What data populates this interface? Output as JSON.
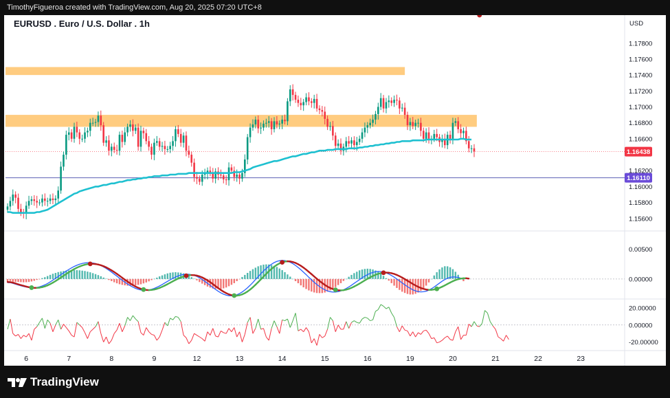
{
  "header": {
    "attribution": "TimothyFigueroa created with TradingView.com, Aug 20, 2025 07:20 UTC+8"
  },
  "footer": {
    "brand": "TradingView"
  },
  "colors": {
    "up": "#089981",
    "down": "#f23645",
    "ema": "#1ec0d0",
    "zone": "#ffcc80",
    "support_line": "#5b5fb5",
    "price_badge": "#f23645",
    "support_badge": "#6a4bd8",
    "macd_fast": "#2962ff",
    "macd_signal_up": "#4caf50",
    "macd_signal_down": "#b71c1c",
    "hist_up": "#26a69a",
    "hist_down": "#ef5350",
    "osc_up": "#4caf50",
    "osc_down": "#f23645"
  },
  "chart_data": [
    {
      "type": "candlestick",
      "title": "EURUSD . Euro / U.S. Dollar . 1h",
      "currency": "USD",
      "y_ticks": [
        "1.17800",
        "1.17600",
        "1.17400",
        "1.17200",
        "1.17000",
        "1.16800",
        "1.16600",
        "1.16200",
        "1.16000",
        "1.15800",
        "1.15600"
      ],
      "ylim": [
        1.1546,
        1.181
      ],
      "x_ticks": [
        "6",
        "7",
        "8",
        "9",
        "12",
        "13",
        "14",
        "15",
        "16",
        "19",
        "20",
        "21",
        "22",
        "23"
      ],
      "x_tick_index": [
        7,
        23,
        39,
        55,
        71,
        87,
        103,
        119,
        135,
        151,
        167,
        183,
        199,
        215
      ],
      "last_price": {
        "value": 1.16438,
        "label": "1.16438"
      },
      "support_line": {
        "value": 1.1611,
        "label": "1.16110"
      },
      "resistance_zones": [
        {
          "from": 1.174,
          "to": 1.175,
          "start": 0,
          "end": 149
        },
        {
          "from": 1.1675,
          "to": 1.169,
          "start": 0,
          "end": 176
        }
      ],
      "close": [
        1.1575,
        1.1582,
        1.159,
        1.1586,
        1.1572,
        1.1568,
        1.1566,
        1.1576,
        1.1582,
        1.1584,
        1.1582,
        1.158,
        1.158,
        1.1585,
        1.1582,
        1.1582,
        1.1585,
        1.1583,
        1.1585,
        1.1595,
        1.1625,
        1.164,
        1.1665,
        1.1668,
        1.166,
        1.1675,
        1.1668,
        1.166,
        1.166,
        1.1668,
        1.167,
        1.168,
        1.168,
        1.1681,
        1.1689,
        1.1677,
        1.1655,
        1.1658,
        1.1645,
        1.165,
        1.1646,
        1.1645,
        1.1665,
        1.1656,
        1.1668,
        1.1675,
        1.1678,
        1.167,
        1.1674,
        1.165,
        1.167,
        1.1667,
        1.1657,
        1.165,
        1.164,
        1.1655,
        1.1657,
        1.165,
        1.1651,
        1.1647,
        1.1647,
        1.1651,
        1.1657,
        1.1672,
        1.1666,
        1.1655,
        1.1664,
        1.1645,
        1.164,
        1.163,
        1.1612,
        1.161,
        1.1606,
        1.1615,
        1.1616,
        1.162,
        1.1617,
        1.161,
        1.1619,
        1.1615,
        1.1614,
        1.1609,
        1.1608,
        1.1624,
        1.162,
        1.1612,
        1.1615,
        1.161,
        1.1617,
        1.1634,
        1.1662,
        1.1674,
        1.1678,
        1.1684,
        1.1673,
        1.1674,
        1.1679,
        1.168,
        1.1682,
        1.1672,
        1.1682,
        1.1678,
        1.1679,
        1.1684,
        1.1682,
        1.1707,
        1.1722,
        1.1715,
        1.1709,
        1.1705,
        1.1702,
        1.1706,
        1.1712,
        1.1707,
        1.1705,
        1.171,
        1.1698,
        1.1696,
        1.1694,
        1.1685,
        1.1675,
        1.1676,
        1.1664,
        1.1651,
        1.1654,
        1.1645,
        1.165,
        1.1657,
        1.1654,
        1.1658,
        1.1652,
        1.1656,
        1.166,
        1.1668,
        1.1674,
        1.1677,
        1.168,
        1.1684,
        1.1691,
        1.17,
        1.1711,
        1.1698,
        1.1706,
        1.1708,
        1.1705,
        1.1709,
        1.1708,
        1.1698,
        1.1699,
        1.169,
        1.1677,
        1.1681,
        1.1676,
        1.168,
        1.168,
        1.167,
        1.166,
        1.1668,
        1.166,
        1.166,
        1.1666,
        1.1662,
        1.1656,
        1.166,
        1.1652,
        1.1665,
        1.166,
        1.168,
        1.1682,
        1.1672,
        1.1667,
        1.167,
        1.1657,
        1.1648,
        1.1648,
        1.1644
      ],
      "ema": [
        1.1568,
        1.1568,
        1.1567,
        1.1567,
        1.1567,
        1.1567,
        1.1567,
        1.1567,
        1.1567,
        1.1567,
        1.1567,
        1.1568,
        1.1568,
        1.1569,
        1.157,
        1.1571,
        1.1573,
        1.1575,
        1.1577,
        1.1579,
        1.1581,
        1.1583,
        1.1585,
        1.1587,
        1.1589,
        1.1591,
        1.1592,
        1.1594,
        1.1595,
        1.1596,
        1.1597,
        1.1598,
        1.1599,
        1.16,
        1.16,
        1.1601,
        1.1602,
        1.1602,
        1.1603,
        1.1604,
        1.1604,
        1.1605,
        1.1606,
        1.1606,
        1.1607,
        1.1608,
        1.1608,
        1.1609,
        1.1609,
        1.161,
        1.161,
        1.1611,
        1.1611,
        1.1612,
        1.1612,
        1.1613,
        1.1613,
        1.1613,
        1.1614,
        1.1614,
        1.1614,
        1.1615,
        1.1615,
        1.1615,
        1.1616,
        1.1616,
        1.1616,
        1.1616,
        1.1617,
        1.1617,
        1.1617,
        1.1617,
        1.1617,
        1.1617,
        1.1617,
        1.1617,
        1.1617,
        1.1617,
        1.1617,
        1.1617,
        1.1617,
        1.1617,
        1.1617,
        1.1617,
        1.1617,
        1.1618,
        1.1618,
        1.1618,
        1.1619,
        1.162,
        1.1621,
        1.1622,
        1.1624,
        1.1625,
        1.1626,
        1.1627,
        1.1628,
        1.1629,
        1.163,
        1.1631,
        1.1632,
        1.1632,
        1.1633,
        1.1634,
        1.1635,
        1.1636,
        1.1637,
        1.1638,
        1.1638,
        1.1639,
        1.164,
        1.1641,
        1.1641,
        1.1642,
        1.1643,
        1.1643,
        1.1644,
        1.1645,
        1.1645,
        1.1645,
        1.1646,
        1.1646,
        1.1646,
        1.1647,
        1.1647,
        1.1647,
        1.1647,
        1.1647,
        1.1648,
        1.1648,
        1.1648,
        1.1648,
        1.1649,
        1.1649,
        1.165,
        1.165,
        1.1651,
        1.1651,
        1.1652,
        1.1652,
        1.1653,
        1.1653,
        1.1654,
        1.1654,
        1.1655,
        1.1655,
        1.1656,
        1.1656,
        1.1657,
        1.1657,
        1.1657,
        1.1657,
        1.1658,
        1.1658,
        1.1658,
        1.1658,
        1.1658,
        1.1659,
        1.1659,
        1.1659,
        1.1659,
        1.1659,
        1.1659,
        1.1659,
        1.1659,
        1.1659,
        1.1659,
        1.1659,
        1.1659,
        1.1659,
        1.166,
        1.166,
        1.1659,
        1.1659,
        1.1659
      ]
    },
    {
      "type": "line",
      "series_type": "macd",
      "y_ticks": [
        "0.00500",
        "0.00000"
      ],
      "ylim": [
        -0.003,
        0.0078
      ],
      "fast": [
        -0.00061,
        -0.0006,
        -0.00073,
        -0.00086,
        -0.001,
        -0.00113,
        -0.00125,
        -0.00135,
        -0.00143,
        -0.00146,
        -0.00145,
        -0.0014,
        -0.00131,
        -0.00116,
        -0.00098,
        -0.00075,
        -0.00048,
        -0.00019,
        0.00011,
        0.00042,
        0.00073,
        0.00103,
        0.00133,
        0.0016,
        0.00186,
        0.0021,
        0.0023,
        0.00247,
        0.0026,
        0.00269,
        0.00273,
        0.00273,
        0.00268,
        0.00258,
        0.00244,
        0.00225,
        0.00202,
        0.00176,
        0.00147,
        0.00116,
        0.00082,
        0.00048,
        0.00013,
        -0.00021,
        -0.00053,
        -0.00084,
        -0.00112,
        -0.00136,
        -0.00156,
        -0.00172,
        -0.00183,
        -0.00188,
        -0.00188,
        -0.00183,
        -0.00172,
        -0.00157,
        -0.00138,
        -0.00116,
        -0.00092,
        -0.00066,
        -0.00039,
        -0.00013,
        0.00011,
        0.00033,
        0.00051,
        0.00066,
        0.00076,
        0.0008,
        0.00079,
        0.00072,
        0.0006,
        0.00042,
        0.00019,
        -8e-05,
        -0.00039,
        -0.00072,
        -0.00106,
        -0.00141,
        -0.00174,
        -0.00205,
        -0.00232,
        -0.00254,
        -0.0027,
        -0.00279,
        -0.00282,
        -0.00277,
        -0.00264,
        -0.00244,
        -0.00217,
        -0.00184,
        -0.00146,
        -0.00103,
        -0.00057,
        -9e-05,
        0.0004,
        0.00088,
        0.00134,
        0.00176,
        0.00215,
        0.00247,
        0.00274,
        0.00294,
        0.00306,
        0.00311,
        0.00308,
        0.00297,
        0.0028,
        0.00256,
        0.00227,
        0.00193,
        0.00155,
        0.00114,
        0.00072,
        0.00029,
        -0.00013,
        -0.00054,
        -0.00092,
        -0.00126,
        -0.00156,
        -0.00181,
        -0.002,
        -0.00212,
        -0.00218,
        -0.00218,
        -0.00211,
        -0.00199,
        -0.00181,
        -0.00159,
        -0.00133,
        -0.00104,
        -0.00073,
        -0.00042,
        -0.0001,
        0.0002,
        0.00048,
        0.00073,
        0.00094,
        0.0011,
        0.00121,
        0.00126,
        0.00124,
        0.00116,
        0.00102,
        0.00083,
        0.00059,
        0.00031,
        0.0,
        -0.00032,
        -0.00065,
        -0.00097,
        -0.00128,
        -0.00156,
        -0.0018,
        -0.00198,
        -0.0021,
        -0.00215,
        -0.00213,
        -0.00203,
        -0.00186,
        -0.00162,
        -0.00133,
        -0.00101,
        -0.00068,
        -0.00037,
        -9e-05,
        0.00012,
        0.00027,
        0.00034,
        0.00033,
        0.00026,
        0.00013,
        -4e-05
      ],
      "signal": [
        -0.0005,
        -0.00052,
        -0.00061,
        -0.00074,
        -0.00089,
        -0.00102,
        -0.00114,
        -0.00126,
        -0.00137,
        -0.00144,
        -0.00148,
        -0.00149,
        -0.00145,
        -0.00136,
        -0.00123,
        -0.00106,
        -0.00085,
        -0.00061,
        -0.00034,
        -6e-05,
        0.00024,
        0.00054,
        0.00084,
        0.00113,
        0.0014,
        0.00166,
        0.00189,
        0.00209,
        0.00226,
        0.00239,
        0.00248,
        0.00253,
        0.00254,
        0.0025,
        0.00242,
        0.0023,
        0.00214,
        0.00194,
        0.00171,
        0.00145,
        0.00116,
        0.00086,
        0.00054,
        0.00021,
        -0.00011,
        -0.00043,
        -0.00073,
        -0.00101,
        -0.00126,
        -0.00147,
        -0.00164,
        -0.00176,
        -0.00183,
        -0.00186,
        -0.00183,
        -0.00176,
        -0.00164,
        -0.00149,
        -0.0013,
        -0.00109,
        -0.00086,
        -0.00062,
        -0.00038,
        -0.00015,
        7e-05,
        0.00026,
        0.00042,
        0.00055,
        0.00063,
        0.00066,
        0.00064,
        0.00057,
        0.00044,
        0.00026,
        3e-05,
        -0.00023,
        -0.00053,
        -0.00085,
        -0.00119,
        -0.00152,
        -0.00183,
        -0.00212,
        -0.00236,
        -0.00256,
        -0.0027,
        -0.00277,
        -0.00278,
        -0.00271,
        -0.00257,
        -0.00236,
        -0.00209,
        -0.00176,
        -0.00138,
        -0.00096,
        -0.00052,
        -6e-05,
        0.0004,
        0.00085,
        0.00129,
        0.00169,
        0.00205,
        0.00236,
        0.00261,
        0.00279,
        0.00291,
        0.00296,
        0.00294,
        0.00284,
        0.00269,
        0.00247,
        0.00221,
        0.0019,
        0.00156,
        0.00119,
        0.00081,
        0.00042,
        4e-05,
        -0.00033,
        -0.00067,
        -0.00099,
        -0.00127,
        -0.0015,
        -0.00168,
        -0.00181,
        -0.00189,
        -0.0019,
        -0.00187,
        -0.00178,
        -0.00165,
        -0.00147,
        -0.00126,
        -0.00102,
        -0.00077,
        -0.0005,
        -0.00023,
        3e-05,
        0.00028,
        0.0005,
        0.0007,
        0.00086,
        0.00098,
        0.00105,
        0.00107,
        0.00105,
        0.00097,
        0.00085,
        0.00068,
        0.00047,
        0.00024,
        -2e-05,
        -0.00029,
        -0.00056,
        -0.00083,
        -0.00108,
        -0.00131,
        -0.0015,
        -0.00165,
        -0.00176,
        -0.00181,
        -0.00181,
        -0.00175,
        -0.00164,
        -0.00149,
        -0.00129,
        -0.00107,
        -0.00083,
        -0.00059,
        -0.00037,
        -0.00018,
        -3e-05,
        7e-05,
        0.00012,
        0.00012,
        7e-05
      ],
      "cross_points": [
        {
          "index": 9,
          "dir": "up"
        },
        {
          "index": 31,
          "dir": "down"
        },
        {
          "index": 51,
          "dir": "up"
        },
        {
          "index": 67,
          "dir": "down"
        },
        {
          "index": 85,
          "dir": "up"
        },
        {
          "index": 103,
          "dir": "down"
        },
        {
          "index": 123,
          "dir": "up"
        },
        {
          "index": 141,
          "dir": "down"
        },
        {
          "index": 161,
          "dir": "up"
        },
        {
          "index": 177,
          "dir": "down"
        }
      ]
    },
    {
      "type": "line",
      "series_type": "oscillator",
      "y_ticks": [
        "20.00000",
        "0.00000",
        "-20.00000"
      ],
      "ylim": [
        -30,
        28
      ],
      "values": [
        -5,
        7,
        -10,
        -13,
        -11,
        -16,
        -12,
        -14,
        -10,
        -18,
        -5,
        -2,
        3,
        8,
        -4,
        6,
        2,
        -8,
        0,
        6,
        -5,
        1,
        -3,
        -7,
        -12,
        -14,
        3,
        0,
        -3,
        -9,
        -16,
        -8,
        -5,
        -2,
        4,
        -10,
        -20,
        -14,
        -22,
        -18,
        -10,
        -6,
        2,
        -8,
        -1,
        9,
        5,
        11,
        7,
        4,
        -9,
        -12,
        -3,
        -8,
        -11,
        -12,
        -18,
        -14,
        -6,
        3,
        -1,
        8,
        6,
        10,
        9,
        4,
        -12,
        -15,
        -22,
        -18,
        -10,
        -12,
        -14,
        -16,
        -19,
        -8,
        -12,
        -4,
        -13,
        -14,
        -7,
        -9,
        -10,
        -4,
        -8,
        -3,
        -14,
        -8,
        -20,
        -11,
        3,
        9,
        -10,
        -4,
        7,
        -5,
        -4,
        -14,
        -18,
        -4,
        5,
        -2,
        -10,
        6,
        5,
        7,
        -3,
        5,
        14,
        -7,
        -5,
        -8,
        -3,
        -8,
        -21,
        -16,
        -24,
        -11,
        -15,
        -13,
        -5,
        9,
        5,
        -8,
        0,
        -5,
        -5,
        4,
        -4,
        3,
        5,
        3,
        2,
        7,
        9,
        8,
        5,
        6,
        16,
        18,
        24,
        22,
        19,
        21,
        14,
        9,
        -2,
        -8,
        -1,
        -6,
        -7,
        -13,
        -8,
        -14,
        -9,
        -11,
        -7,
        -6,
        -10,
        -16,
        -15,
        -21,
        -20,
        -18,
        -15,
        -13,
        -17,
        -18,
        -8,
        -2,
        -17,
        -12,
        -12,
        1,
        -2,
        4,
        -1,
        -2,
        2,
        17,
        14,
        4,
        -1,
        -5,
        -14,
        -16,
        -19,
        -12,
        -17
      ]
    }
  ]
}
